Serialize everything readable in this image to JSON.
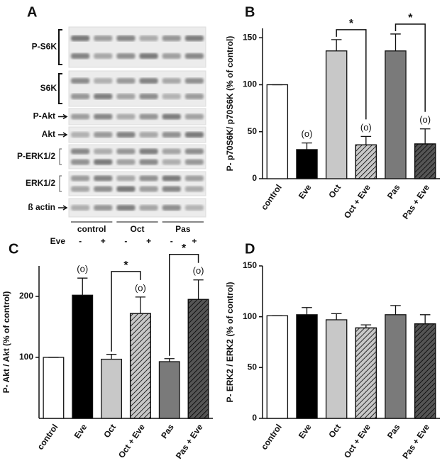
{
  "blot": {
    "panel_label": "A",
    "rows": [
      "P-S6K",
      "S6K",
      "P-Akt",
      "Akt",
      "P-ERK1/2",
      "ERK1/2",
      "ß actin"
    ],
    "groups": [
      "control",
      "Oct",
      "Pas"
    ],
    "treatment": "Eve",
    "signs": [
      "-",
      "+",
      "-",
      "+",
      "-",
      "+"
    ]
  },
  "chart_data": [
    {
      "type": "bar",
      "panel_label": "B",
      "ylabel": "P- p70S6K/ p70S6K (% of control)",
      "categories": [
        "control",
        "Eve",
        "Oct",
        "Oct + Eve",
        "Pas",
        "Pas + Eve"
      ],
      "values": [
        100,
        31,
        136,
        36,
        136,
        37
      ],
      "errors": [
        0,
        7,
        12,
        9,
        18,
        16
      ],
      "colors": [
        "#ffffff",
        "#000000",
        "#c8c8c8",
        "#c8c8c8",
        "#7a7a7a",
        "#555555"
      ],
      "hatch": [
        false,
        false,
        false,
        true,
        false,
        true
      ],
      "annotations": [
        null,
        "(o)",
        null,
        "(o)",
        null,
        "(o)"
      ],
      "significance": [
        {
          "from": "Oct",
          "to": "Oct + Eve",
          "label": "*"
        },
        {
          "from": "Pas",
          "to": "Pas + Eve",
          "label": "*"
        }
      ],
      "ylim": [
        0,
        160
      ],
      "yticks": [
        0,
        50,
        100,
        150
      ]
    },
    {
      "type": "bar",
      "panel_label": "C",
      "ylabel": "P- Akt / Akt (% of control)",
      "categories": [
        "control",
        "Eve",
        "Oct",
        "Oct + Eve",
        "Pas",
        "Pas + Eve"
      ],
      "values": [
        100,
        202,
        97,
        172,
        93,
        195
      ],
      "errors": [
        0,
        28,
        8,
        27,
        5,
        32
      ],
      "colors": [
        "#ffffff",
        "#000000",
        "#c8c8c8",
        "#c8c8c8",
        "#7a7a7a",
        "#555555"
      ],
      "hatch": [
        false,
        false,
        false,
        true,
        false,
        true
      ],
      "annotations": [
        null,
        "(o)",
        null,
        "(o)",
        null,
        "(o)"
      ],
      "significance": [
        {
          "from": "Oct",
          "to": "Oct + Eve",
          "label": "*"
        },
        {
          "from": "Pas",
          "to": "Pas + Eve",
          "label": "*"
        }
      ],
      "ylim": [
        0,
        250
      ],
      "yticks": [
        100,
        200
      ]
    },
    {
      "type": "bar",
      "panel_label": "D",
      "ylabel": "P- ERK2 / ERK2 (% of control)",
      "categories": [
        "control",
        "Eve",
        "Oct",
        "Oct + Eve",
        "Pas",
        "Pas + Eve"
      ],
      "values": [
        101,
        102,
        97,
        89,
        102,
        93
      ],
      "errors": [
        0,
        7,
        6,
        3,
        9,
        9
      ],
      "colors": [
        "#ffffff",
        "#000000",
        "#c8c8c8",
        "#c8c8c8",
        "#7a7a7a",
        "#555555"
      ],
      "hatch": [
        false,
        false,
        false,
        true,
        false,
        true
      ],
      "ylim": [
        0,
        150
      ],
      "yticks": [
        0,
        50,
        100,
        150
      ]
    }
  ]
}
